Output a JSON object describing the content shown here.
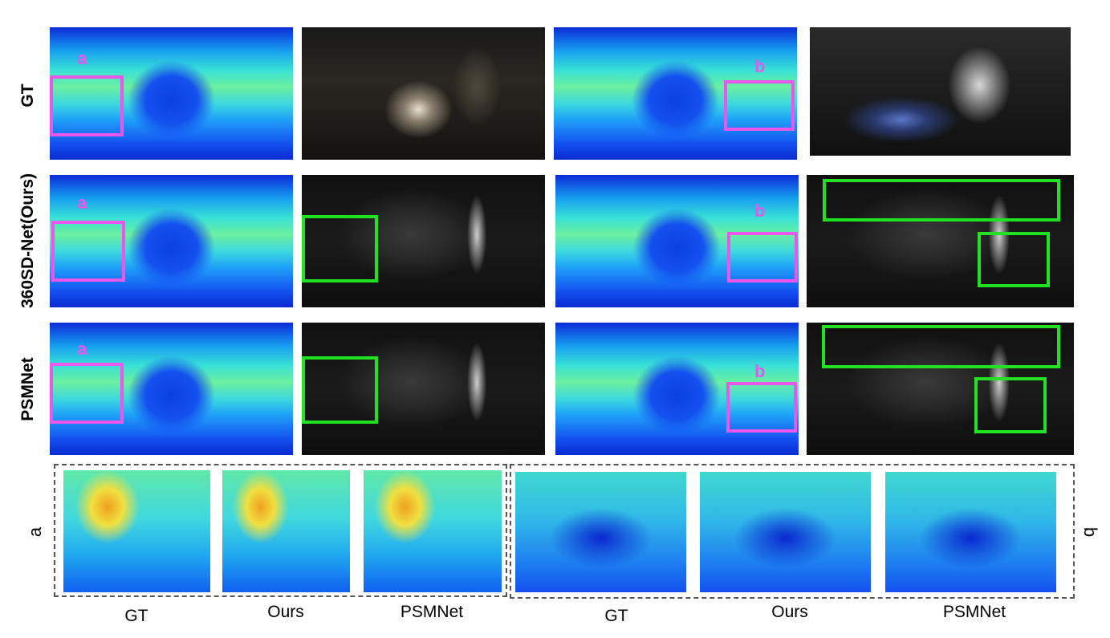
{
  "row_labels": {
    "gt": "GT",
    "ours": "360SD-Net(Ours)",
    "psm": "PSMNet"
  },
  "region_letters": {
    "a": "a",
    "b": "b"
  },
  "side_labels": {
    "left": "a",
    "right": "q"
  },
  "captions": {
    "a_gt": "GT",
    "a_ours": "Ours",
    "a_psm": "PSMNet",
    "b_gt": "GT",
    "b_ours": "Ours",
    "b_psm": "PSMNet"
  },
  "colors": {
    "highlight_box": "#ea57ea",
    "error_box": "#22e022"
  }
}
